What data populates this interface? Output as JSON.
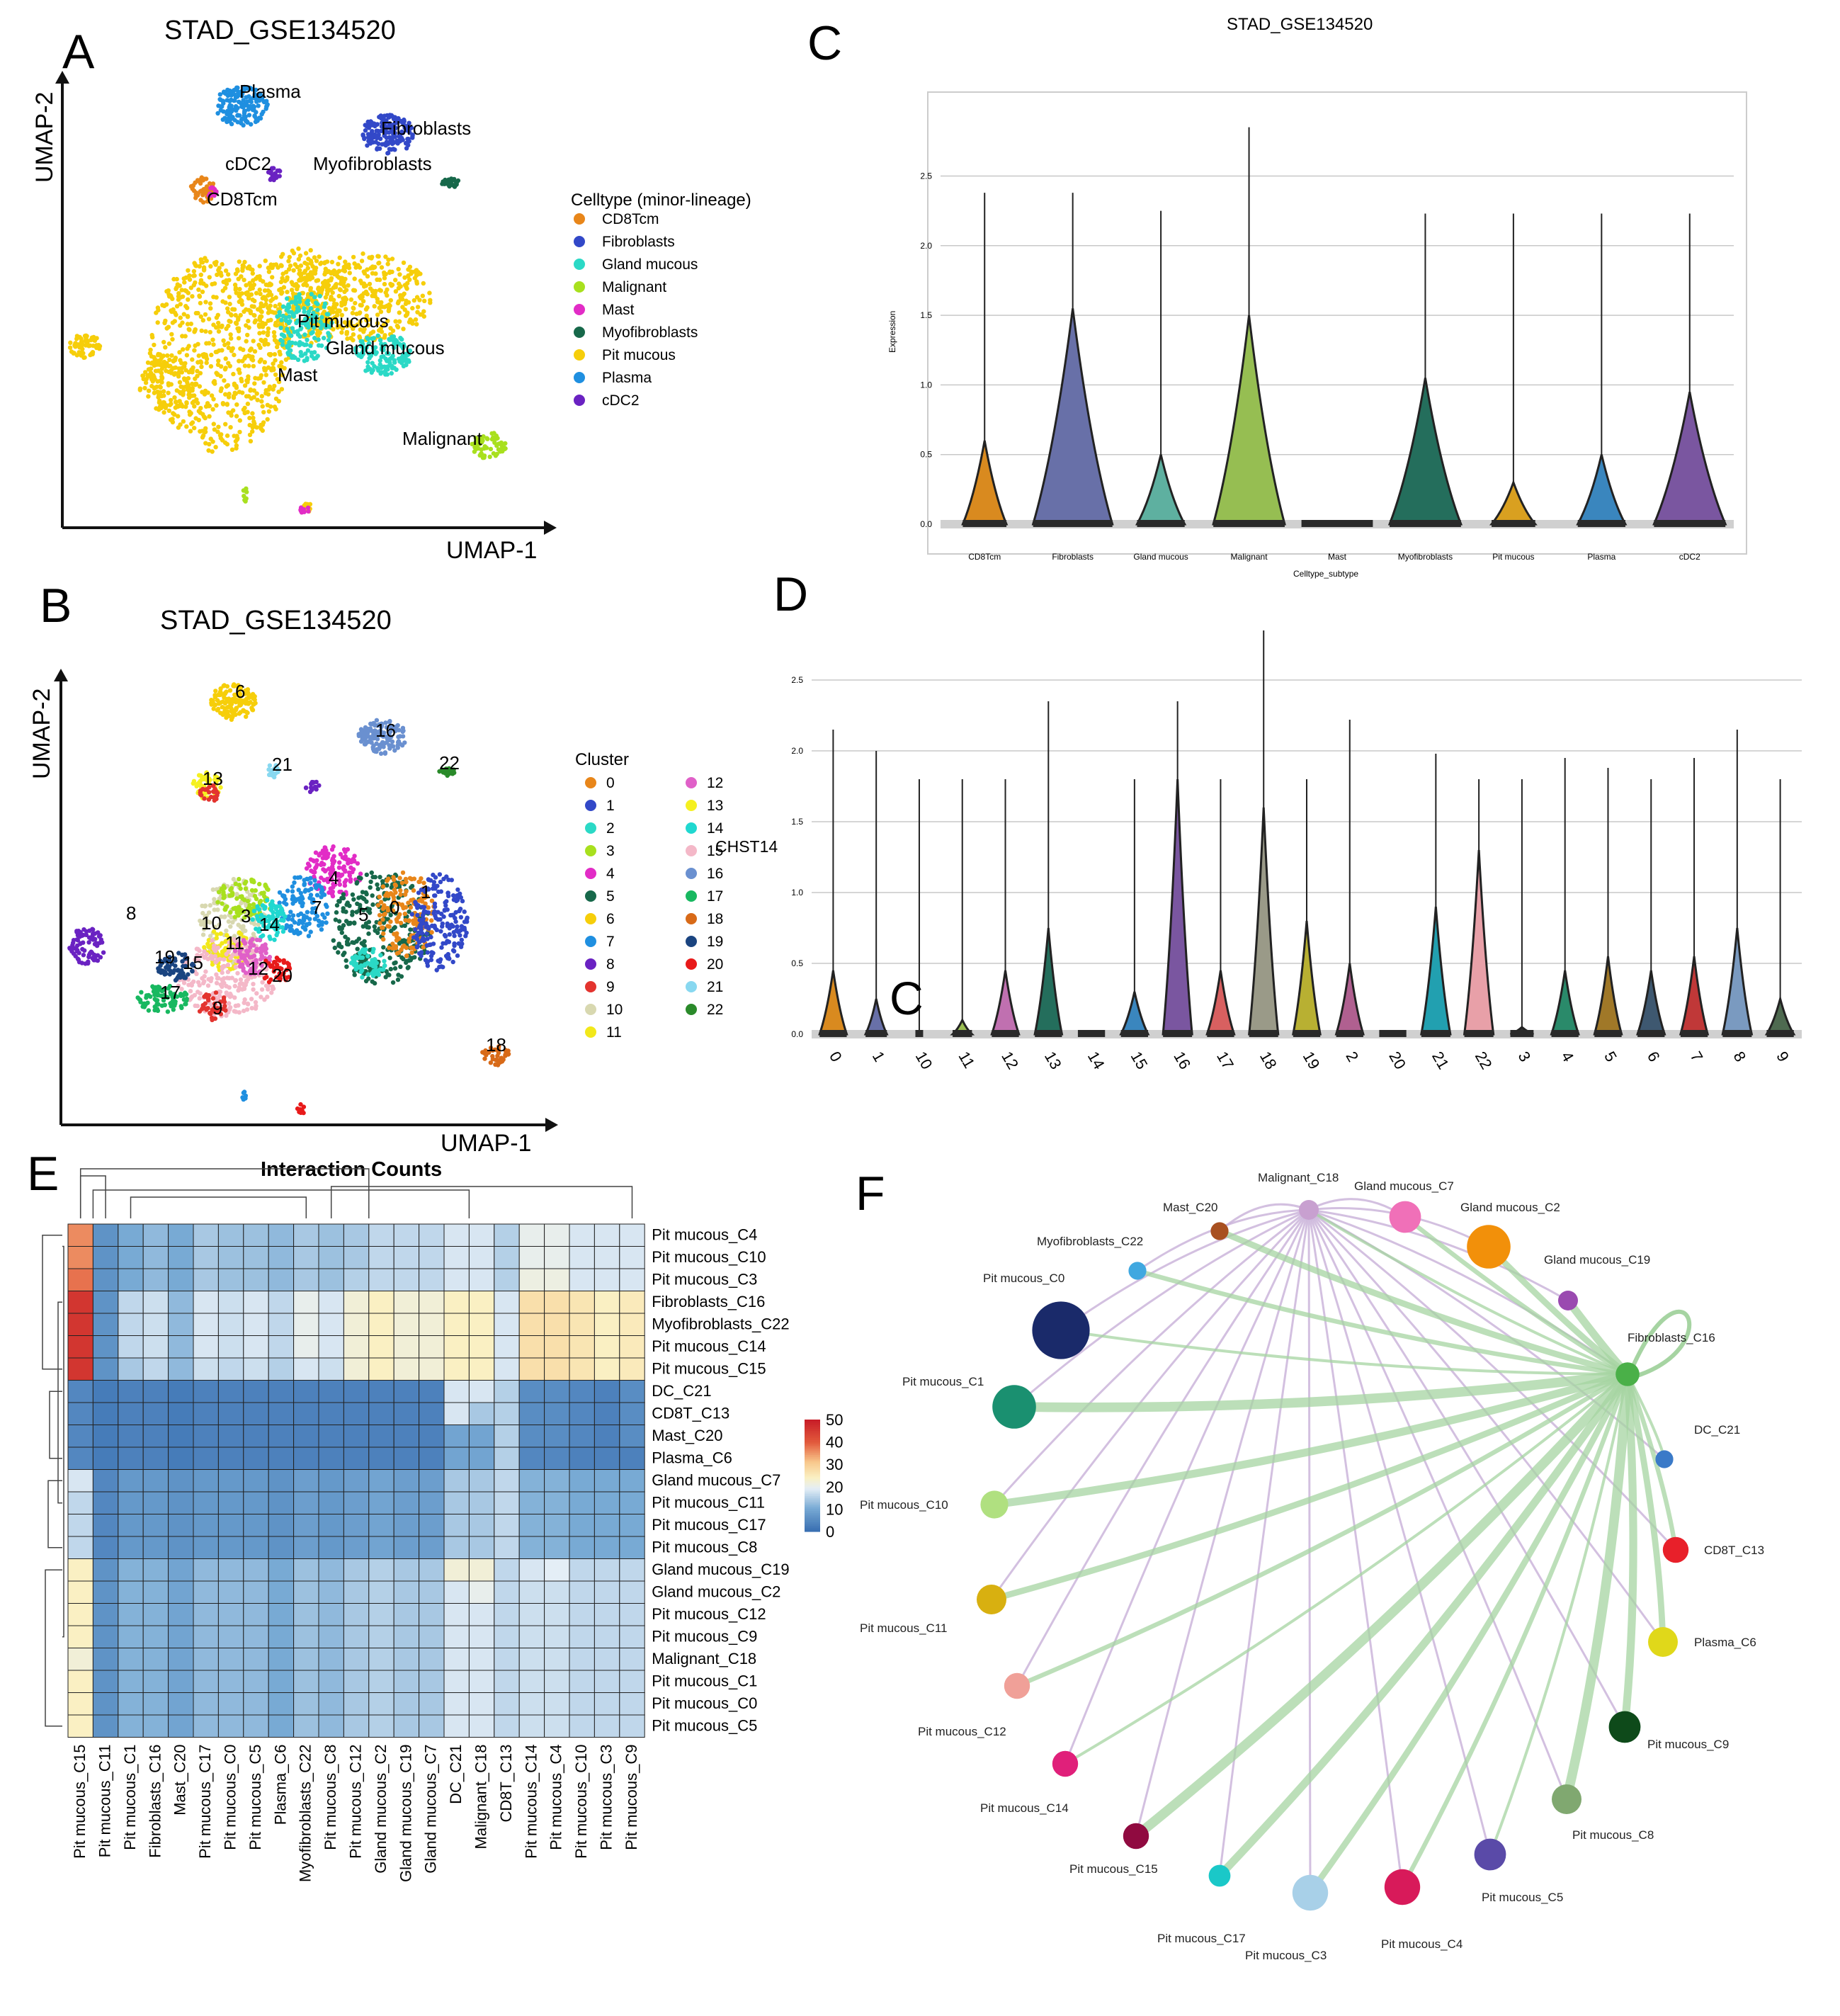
{
  "panels": {
    "A": {
      "letter": "A",
      "title": "STAD_GSE134520",
      "xlabel": "UMAP-1",
      "ylabel": "UMAP-2",
      "legend_title": "Celltype (minor-lineage)",
      "legend": [
        {
          "label": "CD8Tcm",
          "color": "#E8861A"
        },
        {
          "label": "Fibroblasts",
          "color": "#3248C8"
        },
        {
          "label": "Gland mucous",
          "color": "#2BD9C6"
        },
        {
          "label": "Malignant",
          "color": "#A8E01E"
        },
        {
          "label": "Mast",
          "color": "#E22CC6"
        },
        {
          "label": "Myofibroblasts",
          "color": "#17684A"
        },
        {
          "label": "Pit mucous",
          "color": "#F6CE0A"
        },
        {
          "label": "Plasma",
          "color": "#1F8FE0"
        },
        {
          "label": "cDC2",
          "color": "#6A22C2"
        }
      ],
      "annotations": [
        "Plasma",
        "Fibroblasts",
        "cDC2",
        "Myofibroblasts",
        "CD8Tcm",
        "Pit mucous",
        "Gland mucous",
        "Mast",
        "Malignant"
      ]
    },
    "B": {
      "letter": "B",
      "title": "STAD_GSE134520",
      "xlabel": "UMAP-1",
      "ylabel": "UMAP-2",
      "legend_title": "Cluster",
      "legend": [
        {
          "label": "0",
          "color": "#E8861A"
        },
        {
          "label": "1",
          "color": "#3248C8"
        },
        {
          "label": "2",
          "color": "#2BD9C6"
        },
        {
          "label": "3",
          "color": "#A8E01E"
        },
        {
          "label": "4",
          "color": "#E22CC6"
        },
        {
          "label": "5",
          "color": "#17684A"
        },
        {
          "label": "6",
          "color": "#F6CE0A"
        },
        {
          "label": "7",
          "color": "#1F8FE0"
        },
        {
          "label": "8",
          "color": "#6A22C2"
        },
        {
          "label": "9",
          "color": "#E3342F"
        },
        {
          "label": "10",
          "color": "#D8D8B0"
        },
        {
          "label": "11",
          "color": "#F2E81A"
        },
        {
          "label": "12",
          "color": "#E060C8"
        },
        {
          "label": "13",
          "color": "#F5F020"
        },
        {
          "label": "14",
          "color": "#20D8D0"
        },
        {
          "label": "15",
          "color": "#F4B8C8"
        },
        {
          "label": "16",
          "color": "#6A90D0"
        },
        {
          "label": "17",
          "color": "#18B860"
        },
        {
          "label": "18",
          "color": "#D86A18"
        },
        {
          "label": "19",
          "color": "#1A4480"
        },
        {
          "label": "20",
          "color": "#E81A1A"
        },
        {
          "label": "21",
          "color": "#88D8F0"
        },
        {
          "label": "22",
          "color": "#2A8A2A"
        }
      ],
      "annotations": [
        "6",
        "16",
        "21",
        "22",
        "13",
        "8",
        "4",
        "7",
        "1",
        "5",
        "0",
        "10",
        "3",
        "14",
        "11",
        "19",
        "15",
        "12",
        "20",
        "17",
        "9",
        "18"
      ]
    },
    "C": {
      "letter": "C",
      "title": "STAD_GSE134520",
      "ylabel": "Expression",
      "xlabel": "Celltype_subtype"
    },
    "D": {
      "letter": "D",
      "gene_label": "CHST14",
      "stray_letter": "C"
    },
    "E": {
      "letter": "E",
      "title": "Interaction Counts",
      "colorbar_ticks": [
        "50",
        "40",
        "30",
        "20",
        "10",
        "0"
      ]
    },
    "F": {
      "letter": "F"
    }
  },
  "chart_data": [
    {
      "type": "violin",
      "panel": "C",
      "title": "STAD_GSE134520",
      "xlabel": "Celltype_subtype",
      "ylabel": "Expression",
      "ylim": [
        0,
        2.95
      ],
      "yticks": [
        "0.0",
        "0.5",
        "1.0",
        "1.5",
        "2.0",
        "2.5"
      ],
      "categories": [
        "CD8Tcm",
        "Fibroblasts",
        "Gland mucous",
        "Malignant",
        "Mast",
        "Myofibroblasts",
        "Pit mucous",
        "Plasma",
        "cDC2"
      ],
      "colors": [
        "#D98A1F",
        "#6870A8",
        "#5EB0A0",
        "#96BE52",
        "#333333",
        "#246E5C",
        "#D9A020",
        "#3A86BE",
        "#7A56A0"
      ],
      "max": [
        2.38,
        2.38,
        2.25,
        2.85,
        0.0,
        2.23,
        2.23,
        2.23,
        2.23
      ],
      "shoulder": [
        0.6,
        1.55,
        0.5,
        1.5,
        0.0,
        1.05,
        0.3,
        0.5,
        0.95
      ],
      "width": [
        0.55,
        1.0,
        0.6,
        0.9,
        0.9,
        0.9,
        0.55,
        0.6,
        0.9
      ]
    },
    {
      "type": "violin",
      "panel": "D",
      "ylim": [
        0,
        2.85
      ],
      "yticks": [
        "0.0",
        "0.5",
        "1.0",
        "1.5",
        "2.0",
        "2.5"
      ],
      "categories": [
        "0",
        "1",
        "10",
        "11",
        "12",
        "13",
        "14",
        "15",
        "16",
        "17",
        "18",
        "19",
        "2",
        "20",
        "21",
        "22",
        "3",
        "4",
        "5",
        "6",
        "7",
        "8",
        "9"
      ],
      "colors": [
        "#D98A1F",
        "#6870A8",
        "#2A7A6A",
        "#9ABE52",
        "#C070B0",
        "#246E5C",
        "#222222",
        "#3A86BE",
        "#7A56A0",
        "#D86060",
        "#9A9A88",
        "#B8B032",
        "#B06090",
        "#222222",
        "#22A0B0",
        "#E8A0A8",
        "#333333",
        "#2A8A6A",
        "#A07828",
        "#3E5870",
        "#C03838",
        "#7A9AC0",
        "#4E6A50"
      ],
      "max": [
        2.15,
        2.0,
        1.8,
        1.8,
        1.8,
        2.35,
        0.0,
        1.8,
        2.35,
        1.8,
        2.85,
        1.8,
        2.22,
        0.0,
        1.98,
        1.8,
        1.8,
        1.95,
        1.88,
        1.8,
        1.95,
        2.15,
        1.8
      ],
      "shoulder": [
        0.45,
        0.25,
        0.0,
        0.1,
        0.45,
        0.75,
        0.0,
        0.3,
        1.8,
        0.45,
        1.6,
        0.8,
        0.5,
        0.0,
        0.9,
        1.3,
        0.05,
        0.45,
        0.55,
        0.45,
        0.55,
        0.75,
        0.25
      ],
      "width": [
        0.7,
        0.55,
        0.2,
        0.5,
        0.7,
        0.7,
        0.7,
        0.7,
        0.75,
        0.7,
        0.75,
        0.7,
        0.7,
        0.7,
        0.75,
        0.75,
        0.6,
        0.7,
        0.7,
        0.7,
        0.7,
        0.75,
        0.7
      ]
    },
    {
      "type": "heatmap",
      "panel": "E",
      "title": "Interaction Counts",
      "rows": [
        "Pit mucous_C4",
        "Pit mucous_C10",
        "Pit mucous_C3",
        "Fibroblasts_C16",
        "Myofibroblasts_C22",
        "Pit mucous_C14",
        "Pit mucous_C15",
        "DC_C21",
        "CD8T_C13",
        "Mast_C20",
        "Plasma_C6",
        "Gland mucous_C7",
        "Pit mucous_C11",
        "Pit mucous_C17",
        "Pit mucous_C8",
        "Gland mucous_C19",
        "Gland mucous_C2",
        "Pit mucous_C12",
        "Pit mucous_C9",
        "Malignant_C18",
        "Pit mucous_C1",
        "Pit mucous_C0",
        "Pit mucous_C5"
      ],
      "cols": [
        "Pit mucous_C15",
        "Pit mucous_C11",
        "Pit mucous_C1",
        "Fibroblasts_C16",
        "Mast_C20",
        "Pit mucous_C17",
        "Pit mucous_C0",
        "Pit mucous_C5",
        "Plasma_C6",
        "Myofibroblasts_C22",
        "Pit mucous_C8",
        "Pit mucous_C12",
        "Gland mucous_C2",
        "Gland mucous_C19",
        "Gland mucous_C7",
        "DC_C21",
        "Malignant_C18",
        "CD8T_C13",
        "Pit mucous_C14",
        "Pit mucous_C4",
        "Pit mucous_C10",
        "Pit mucous_C3",
        "Pit mucous_C9"
      ],
      "values": [
        [
          36,
          6,
          10,
          12,
          10,
          14,
          13,
          13,
          12,
          14,
          13,
          14,
          16,
          16,
          16,
          18,
          18,
          15,
          20,
          20,
          18,
          18,
          18
        ],
        [
          36,
          6,
          10,
          12,
          10,
          14,
          13,
          13,
          12,
          14,
          13,
          14,
          16,
          16,
          16,
          18,
          18,
          15,
          20,
          20,
          18,
          18,
          18
        ],
        [
          38,
          6,
          10,
          12,
          10,
          14,
          13,
          13,
          12,
          14,
          13,
          15,
          16,
          16,
          16,
          18,
          18,
          15,
          21,
          21,
          18,
          18,
          18
        ],
        [
          46,
          6,
          16,
          17,
          12,
          18,
          17,
          18,
          16,
          20,
          18,
          22,
          24,
          22,
          22,
          24,
          24,
          18,
          27,
          27,
          26,
          24,
          25
        ],
        [
          46,
          6,
          16,
          17,
          12,
          18,
          17,
          18,
          16,
          20,
          18,
          22,
          24,
          22,
          22,
          24,
          24,
          18,
          27,
          27,
          26,
          24,
          25
        ],
        [
          46,
          6,
          16,
          17,
          12,
          18,
          17,
          18,
          16,
          20,
          18,
          22,
          24,
          22,
          22,
          24,
          24,
          18,
          27,
          27,
          26,
          24,
          25
        ],
        [
          46,
          6,
          14,
          16,
          12,
          17,
          16,
          17,
          15,
          18,
          17,
          22,
          24,
          22,
          22,
          24,
          24,
          18,
          27,
          27,
          26,
          24,
          25
        ],
        [
          4,
          2,
          3,
          3,
          2,
          3,
          3,
          3,
          3,
          3,
          3,
          3,
          3,
          3,
          3,
          18,
          18,
          15,
          5,
          5,
          4,
          3,
          5
        ],
        [
          4,
          2,
          3,
          3,
          2,
          3,
          3,
          3,
          3,
          3,
          3,
          3,
          3,
          3,
          3,
          18,
          14,
          15,
          5,
          5,
          4,
          3,
          5
        ],
        [
          4,
          2,
          3,
          3,
          2,
          3,
          3,
          3,
          3,
          3,
          3,
          3,
          3,
          3,
          3,
          9,
          9,
          15,
          5,
          5,
          4,
          3,
          5
        ],
        [
          4,
          2,
          3,
          3,
          2,
          3,
          3,
          3,
          3,
          3,
          3,
          3,
          3,
          3,
          3,
          9,
          9,
          15,
          4,
          4,
          3,
          3,
          3
        ],
        [
          18,
          4,
          7,
          7,
          6,
          7,
          7,
          7,
          6,
          8,
          7,
          8,
          9,
          8,
          8,
          14,
          14,
          16,
          11,
          11,
          10,
          10,
          10
        ],
        [
          16,
          4,
          7,
          7,
          6,
          7,
          7,
          7,
          6,
          8,
          7,
          8,
          9,
          8,
          8,
          14,
          14,
          16,
          11,
          11,
          10,
          10,
          10
        ],
        [
          16,
          4,
          7,
          7,
          6,
          7,
          7,
          7,
          6,
          8,
          7,
          8,
          9,
          8,
          8,
          14,
          14,
          16,
          11,
          11,
          10,
          10,
          10
        ],
        [
          16,
          4,
          7,
          7,
          6,
          7,
          7,
          7,
          6,
          8,
          7,
          8,
          9,
          8,
          8,
          14,
          14,
          16,
          11,
          11,
          10,
          10,
          10
        ],
        [
          24,
          6,
          11,
          11,
          9,
          12,
          12,
          12,
          10,
          13,
          12,
          14,
          15,
          14,
          14,
          22,
          22,
          16,
          18,
          19,
          16,
          16,
          16
        ],
        [
          24,
          6,
          11,
          11,
          9,
          12,
          12,
          12,
          10,
          13,
          12,
          14,
          15,
          14,
          14,
          18,
          20,
          16,
          17,
          17,
          16,
          16,
          16
        ],
        [
          24,
          6,
          11,
          11,
          9,
          12,
          12,
          12,
          10,
          13,
          12,
          14,
          15,
          14,
          14,
          18,
          18,
          16,
          17,
          17,
          16,
          16,
          16
        ],
        [
          24,
          6,
          11,
          11,
          9,
          12,
          12,
          12,
          10,
          13,
          12,
          14,
          15,
          14,
          14,
          18,
          18,
          16,
          17,
          17,
          16,
          16,
          16
        ],
        [
          22,
          6,
          11,
          11,
          9,
          12,
          12,
          12,
          10,
          13,
          12,
          14,
          15,
          14,
          14,
          18,
          18,
          16,
          17,
          17,
          16,
          16,
          16
        ],
        [
          24,
          6,
          11,
          11,
          9,
          12,
          12,
          12,
          10,
          13,
          12,
          14,
          15,
          14,
          14,
          18,
          18,
          16,
          17,
          17,
          16,
          16,
          16
        ],
        [
          24,
          6,
          11,
          11,
          9,
          12,
          12,
          12,
          10,
          13,
          12,
          14,
          15,
          14,
          14,
          18,
          18,
          16,
          17,
          17,
          16,
          16,
          16
        ],
        [
          24,
          6,
          11,
          11,
          9,
          12,
          12,
          12,
          10,
          13,
          12,
          14,
          15,
          14,
          14,
          18,
          18,
          16,
          17,
          17,
          16,
          16,
          16
        ]
      ],
      "scale": [
        0,
        50
      ]
    },
    {
      "type": "network",
      "panel": "F",
      "nodes": [
        {
          "label": "Malignant_C18",
          "color": "#C8A0D0",
          "size": 1.0
        },
        {
          "label": "Gland mucous_C7",
          "color": "#F070B8",
          "size": 1.6
        },
        {
          "label": "Gland mucous_C2",
          "color": "#F2900A",
          "size": 2.2
        },
        {
          "label": "Gland mucous_C19",
          "color": "#9A4AB0",
          "size": 1.0
        },
        {
          "label": "Fibroblasts_C16",
          "color": "#4AB048",
          "size": 1.2
        },
        {
          "label": "DC_C21",
          "color": "#3A7AC8",
          "size": 0.9
        },
        {
          "label": "CD8T_C13",
          "color": "#E8202A",
          "size": 1.3
        },
        {
          "label": "Plasma_C6",
          "color": "#E0D81A",
          "size": 1.5
        },
        {
          "label": "Pit mucous_C9",
          "color": "#0E4A1A",
          "size": 1.6
        },
        {
          "label": "Pit mucous_C8",
          "color": "#80A870",
          "size": 1.5
        },
        {
          "label": "Pit mucous_C5",
          "color": "#5A4AA8",
          "size": 1.6
        },
        {
          "label": "Pit mucous_C4",
          "color": "#D81A5A",
          "size": 1.8
        },
        {
          "label": "Pit mucous_C3",
          "color": "#A8D0E8",
          "size": 1.8
        },
        {
          "label": "Pit mucous_C17",
          "color": "#1AC8C8",
          "size": 1.1
        },
        {
          "label": "Pit mucous_C15",
          "color": "#900A40",
          "size": 1.3
        },
        {
          "label": "Pit mucous_C14",
          "color": "#E0207A",
          "size": 1.3
        },
        {
          "label": "Pit mucous_C12",
          "color": "#F0A098",
          "size": 1.3
        },
        {
          "label": "Pit mucous_C11",
          "color": "#D8B010",
          "size": 1.5
        },
        {
          "label": "Pit mucous_C10",
          "color": "#B0E080",
          "size": 1.4
        },
        {
          "label": "Pit mucous_C1",
          "color": "#1A9070",
          "size": 2.2
        },
        {
          "label": "Pit mucous_C0",
          "color": "#1A2A6A",
          "size": 2.9
        },
        {
          "label": "Myofibroblasts_C22",
          "color": "#40A8E0",
          "size": 0.9
        },
        {
          "label": "Mast_C20",
          "color": "#A85020",
          "size": 0.9
        }
      ],
      "hubs": [
        "Fibroblasts_C16",
        "Malignant_C18"
      ]
    }
  ]
}
